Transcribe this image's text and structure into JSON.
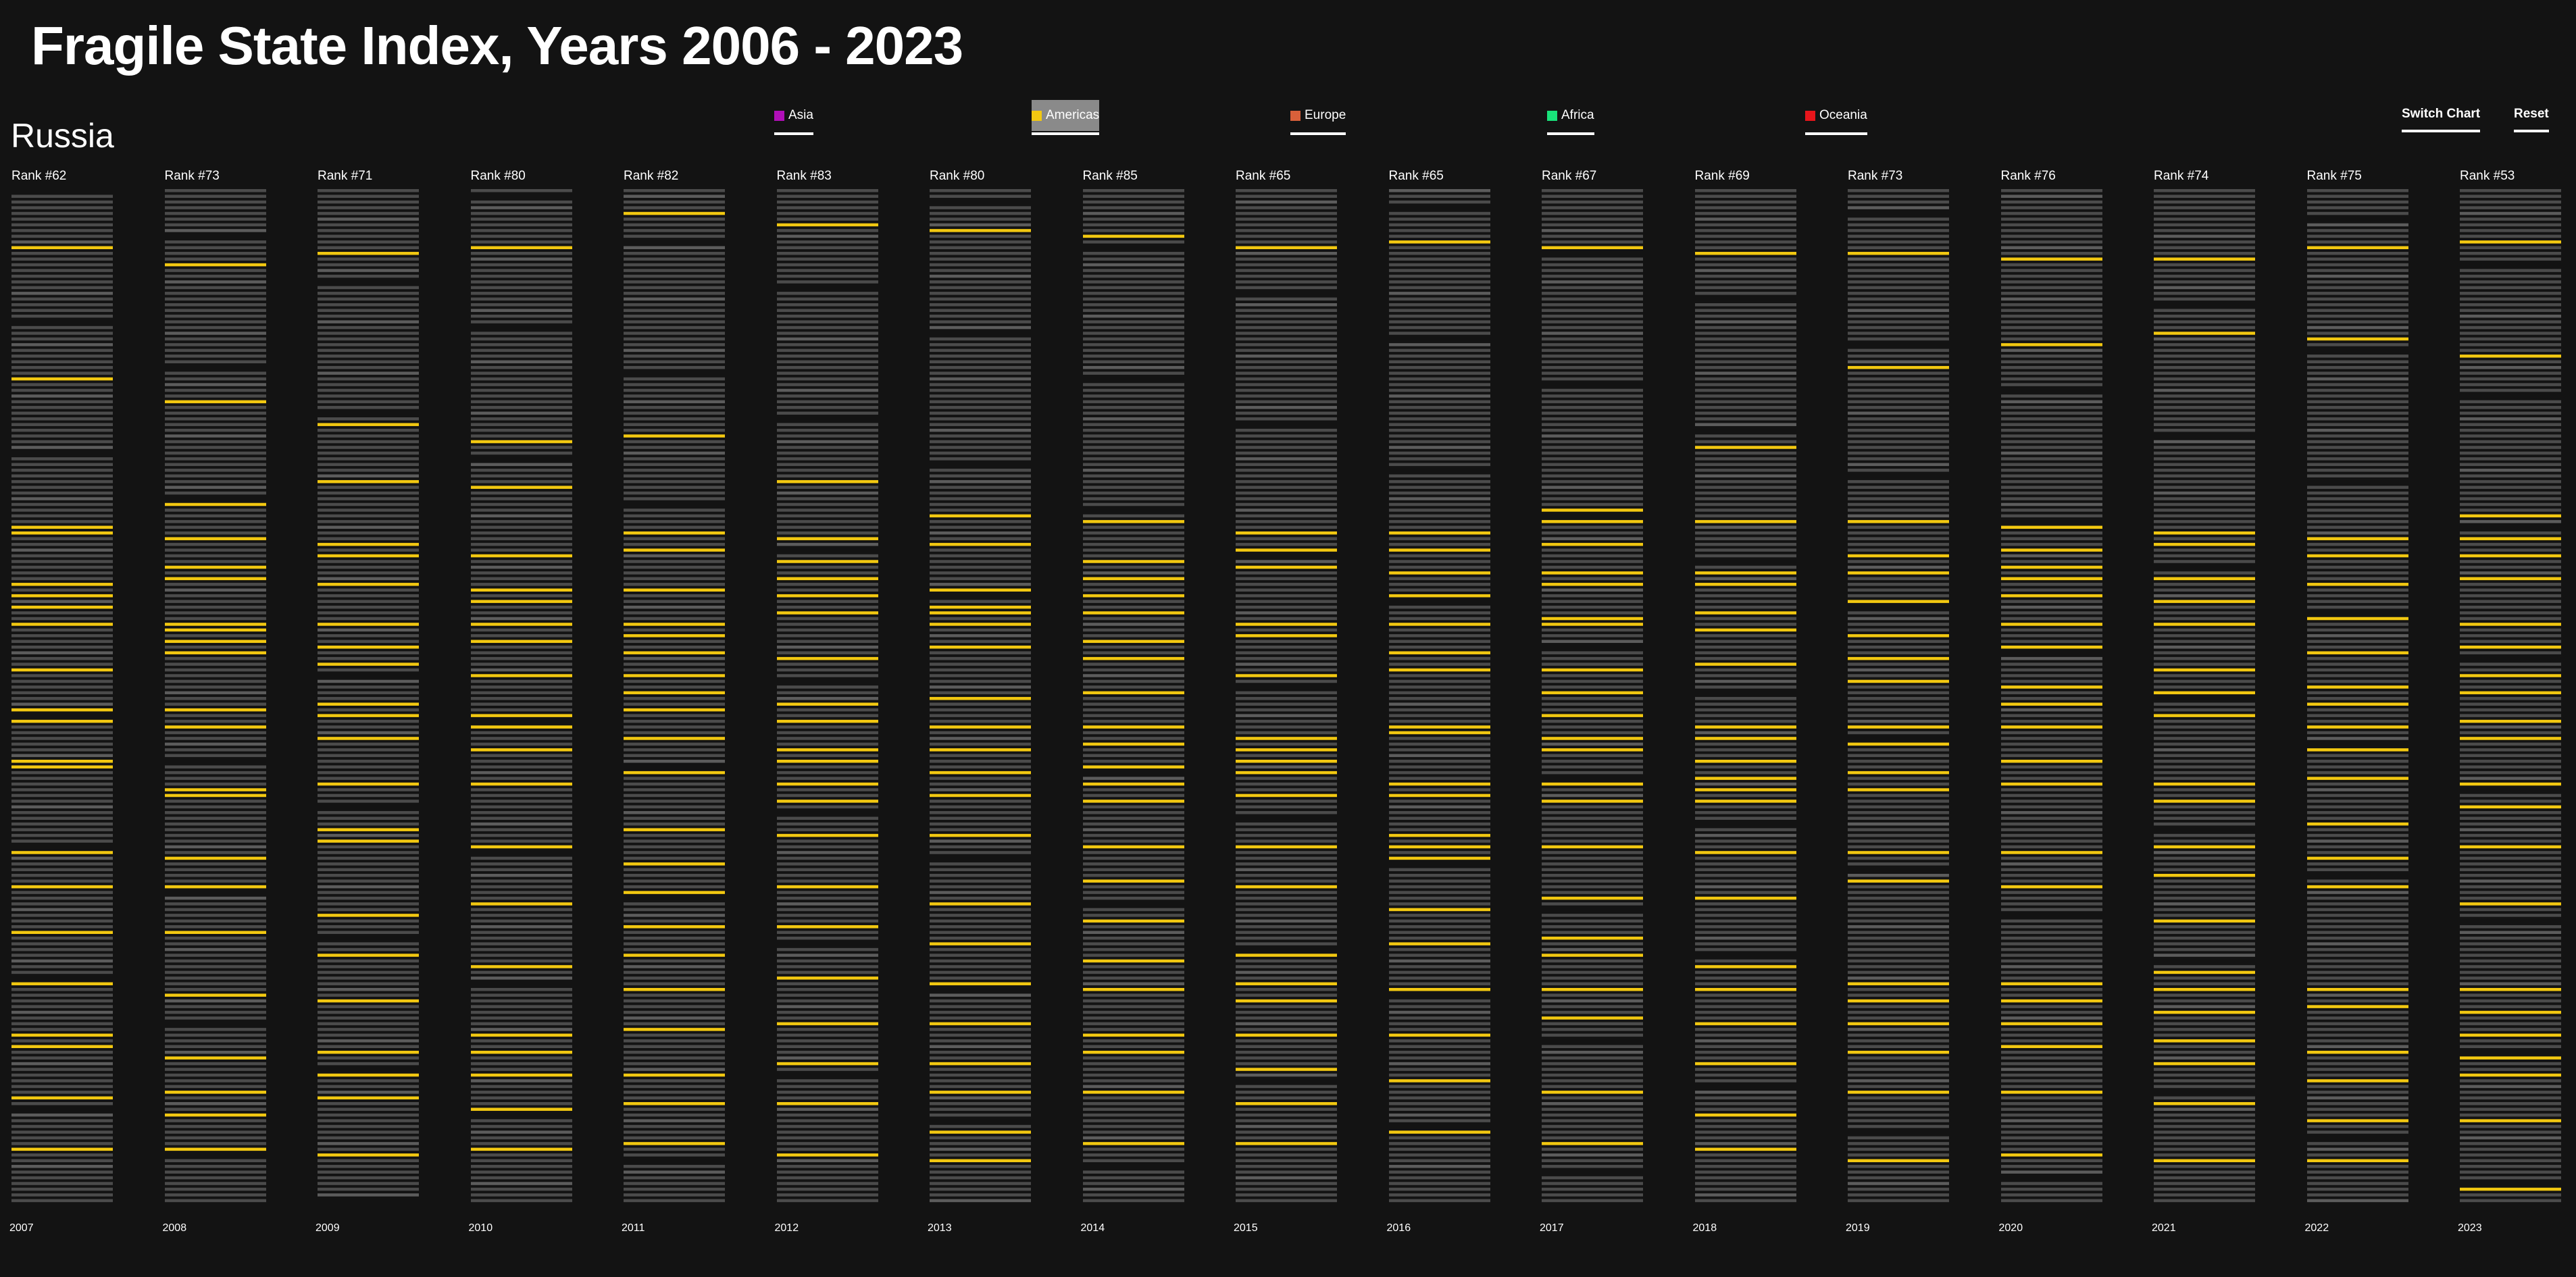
{
  "title": "Fragile State Index, Years 2006 - 2023",
  "country": "Russia",
  "legend": [
    {
      "label": "Asia",
      "color": "#b10fb8",
      "active": false
    },
    {
      "label": "Americas",
      "color": "#f2c811",
      "active": true
    },
    {
      "label": "Europe",
      "color": "#d9603a",
      "active": false
    },
    {
      "label": "Africa",
      "color": "#19e27a",
      "active": false
    },
    {
      "label": "Oceania",
      "color": "#e8151b",
      "active": false
    }
  ],
  "buttons": {
    "switch_chart": "Switch Chart",
    "reset": "Reset"
  },
  "colors": {
    "background": "#131313",
    "bar": "#4b4b4b",
    "highlight": "#f2c811"
  },
  "chart_data": {
    "type": "strip",
    "title": "Fragile State Index, Years 2006 - 2023",
    "country": "Russia",
    "highlight_region": "Americas",
    "countries_per_year": 178,
    "years": [
      {
        "year": "2007",
        "rank_label": "Rank #62",
        "highlighted_ranks": [
          10,
          33,
          59,
          60,
          69,
          71,
          73,
          76,
          84,
          91,
          93,
          100,
          101,
          116,
          122,
          130,
          139,
          148,
          150,
          159,
          168
        ]
      },
      {
        "year": "2008",
        "rank_label": "Rank #73",
        "highlighted_ranks": [
          13,
          37,
          55,
          61,
          66,
          68,
          76,
          77,
          79,
          81,
          91,
          94,
          105,
          106,
          117,
          122,
          130,
          141,
          152,
          158,
          162,
          168
        ]
      },
      {
        "year": "2009",
        "rank_label": "Rank #71",
        "highlighted_ranks": [
          11,
          41,
          51,
          62,
          64,
          69,
          76,
          80,
          83,
          90,
          92,
          96,
          104,
          112,
          114,
          127,
          134,
          142,
          151,
          155,
          159,
          169
        ]
      },
      {
        "year": "2010",
        "rank_label": "Rank #80",
        "highlighted_ranks": [
          10,
          44,
          52,
          64,
          70,
          72,
          76,
          79,
          85,
          92,
          94,
          98,
          104,
          115,
          125,
          136,
          148,
          151,
          155,
          161,
          168
        ]
      },
      {
        "year": "2011",
        "rank_label": "Rank #82",
        "highlighted_ranks": [
          4,
          43,
          60,
          63,
          70,
          76,
          78,
          81,
          85,
          88,
          91,
          96,
          102,
          112,
          118,
          123,
          129,
          134,
          140,
          147,
          155,
          160,
          167
        ]
      },
      {
        "year": "2012",
        "rank_label": "Rank #83",
        "highlighted_ranks": [
          6,
          51,
          61,
          65,
          68,
          71,
          74,
          82,
          90,
          93,
          98,
          100,
          104,
          107,
          113,
          122,
          129,
          138,
          146,
          153,
          160,
          169
        ]
      },
      {
        "year": "2013",
        "rank_label": "Rank #80",
        "highlighted_ranks": [
          7,
          57,
          62,
          70,
          73,
          74,
          76,
          80,
          89,
          94,
          98,
          102,
          106,
          113,
          125,
          132,
          139,
          146,
          153,
          158,
          165,
          170
        ]
      },
      {
        "year": "2014",
        "rank_label": "Rank #85",
        "highlighted_ranks": [
          8,
          58,
          65,
          68,
          71,
          74,
          79,
          82,
          88,
          94,
          97,
          101,
          104,
          107,
          115,
          121,
          128,
          135,
          140,
          148,
          151,
          158,
          167
        ]
      },
      {
        "year": "2015",
        "rank_label": "Rank #65",
        "highlighted_ranks": [
          10,
          60,
          63,
          66,
          76,
          78,
          85,
          96,
          98,
          100,
          102,
          106,
          115,
          122,
          134,
          139,
          142,
          148,
          154,
          160,
          167
        ]
      },
      {
        "year": "2016",
        "rank_label": "Rank #65",
        "highlighted_ranks": [
          9,
          60,
          63,
          67,
          71,
          76,
          81,
          84,
          94,
          95,
          104,
          106,
          113,
          115,
          117,
          126,
          132,
          140,
          148,
          156,
          165
        ]
      },
      {
        "year": "2017",
        "rank_label": "Rank #67",
        "highlighted_ranks": [
          10,
          56,
          58,
          62,
          67,
          69,
          75,
          76,
          84,
          88,
          92,
          96,
          98,
          104,
          107,
          115,
          124,
          131,
          134,
          140,
          145,
          158,
          167
        ]
      },
      {
        "year": "2018",
        "rank_label": "Rank #69",
        "highlighted_ranks": [
          11,
          45,
          58,
          67,
          69,
          74,
          77,
          83,
          94,
          96,
          100,
          103,
          105,
          107,
          116,
          124,
          136,
          140,
          146,
          153,
          162,
          168
        ]
      },
      {
        "year": "2019",
        "rank_label": "Rank #73",
        "highlighted_ranks": [
          11,
          31,
          58,
          64,
          67,
          72,
          78,
          82,
          86,
          94,
          97,
          102,
          105,
          116,
          121,
          139,
          142,
          146,
          151,
          158,
          170
        ]
      },
      {
        "year": "2020",
        "rank_label": "Rank #76",
        "highlighted_ranks": [
          12,
          27,
          59,
          63,
          66,
          68,
          71,
          76,
          80,
          87,
          90,
          94,
          100,
          104,
          116,
          122,
          139,
          142,
          146,
          150,
          158,
          169
        ]
      },
      {
        "year": "2021",
        "rank_label": "Rank #74",
        "highlighted_ranks": [
          12,
          25,
          60,
          62,
          68,
          72,
          76,
          84,
          88,
          92,
          104,
          107,
          115,
          120,
          128,
          137,
          140,
          144,
          149,
          153,
          160,
          170
        ]
      },
      {
        "year": "2022",
        "rank_label": "Rank #75",
        "highlighted_ranks": [
          10,
          26,
          61,
          64,
          69,
          75,
          81,
          87,
          90,
          94,
          98,
          103,
          111,
          117,
          122,
          140,
          143,
          151,
          156,
          163,
          170
        ]
      },
      {
        "year": "2023",
        "rank_label": "Rank #53",
        "highlighted_ranks": [
          9,
          29,
          57,
          61,
          64,
          68,
          76,
          80,
          85,
          88,
          93,
          96,
          104,
          108,
          115,
          125,
          140,
          144,
          148,
          152,
          155,
          163,
          175
        ]
      }
    ]
  }
}
